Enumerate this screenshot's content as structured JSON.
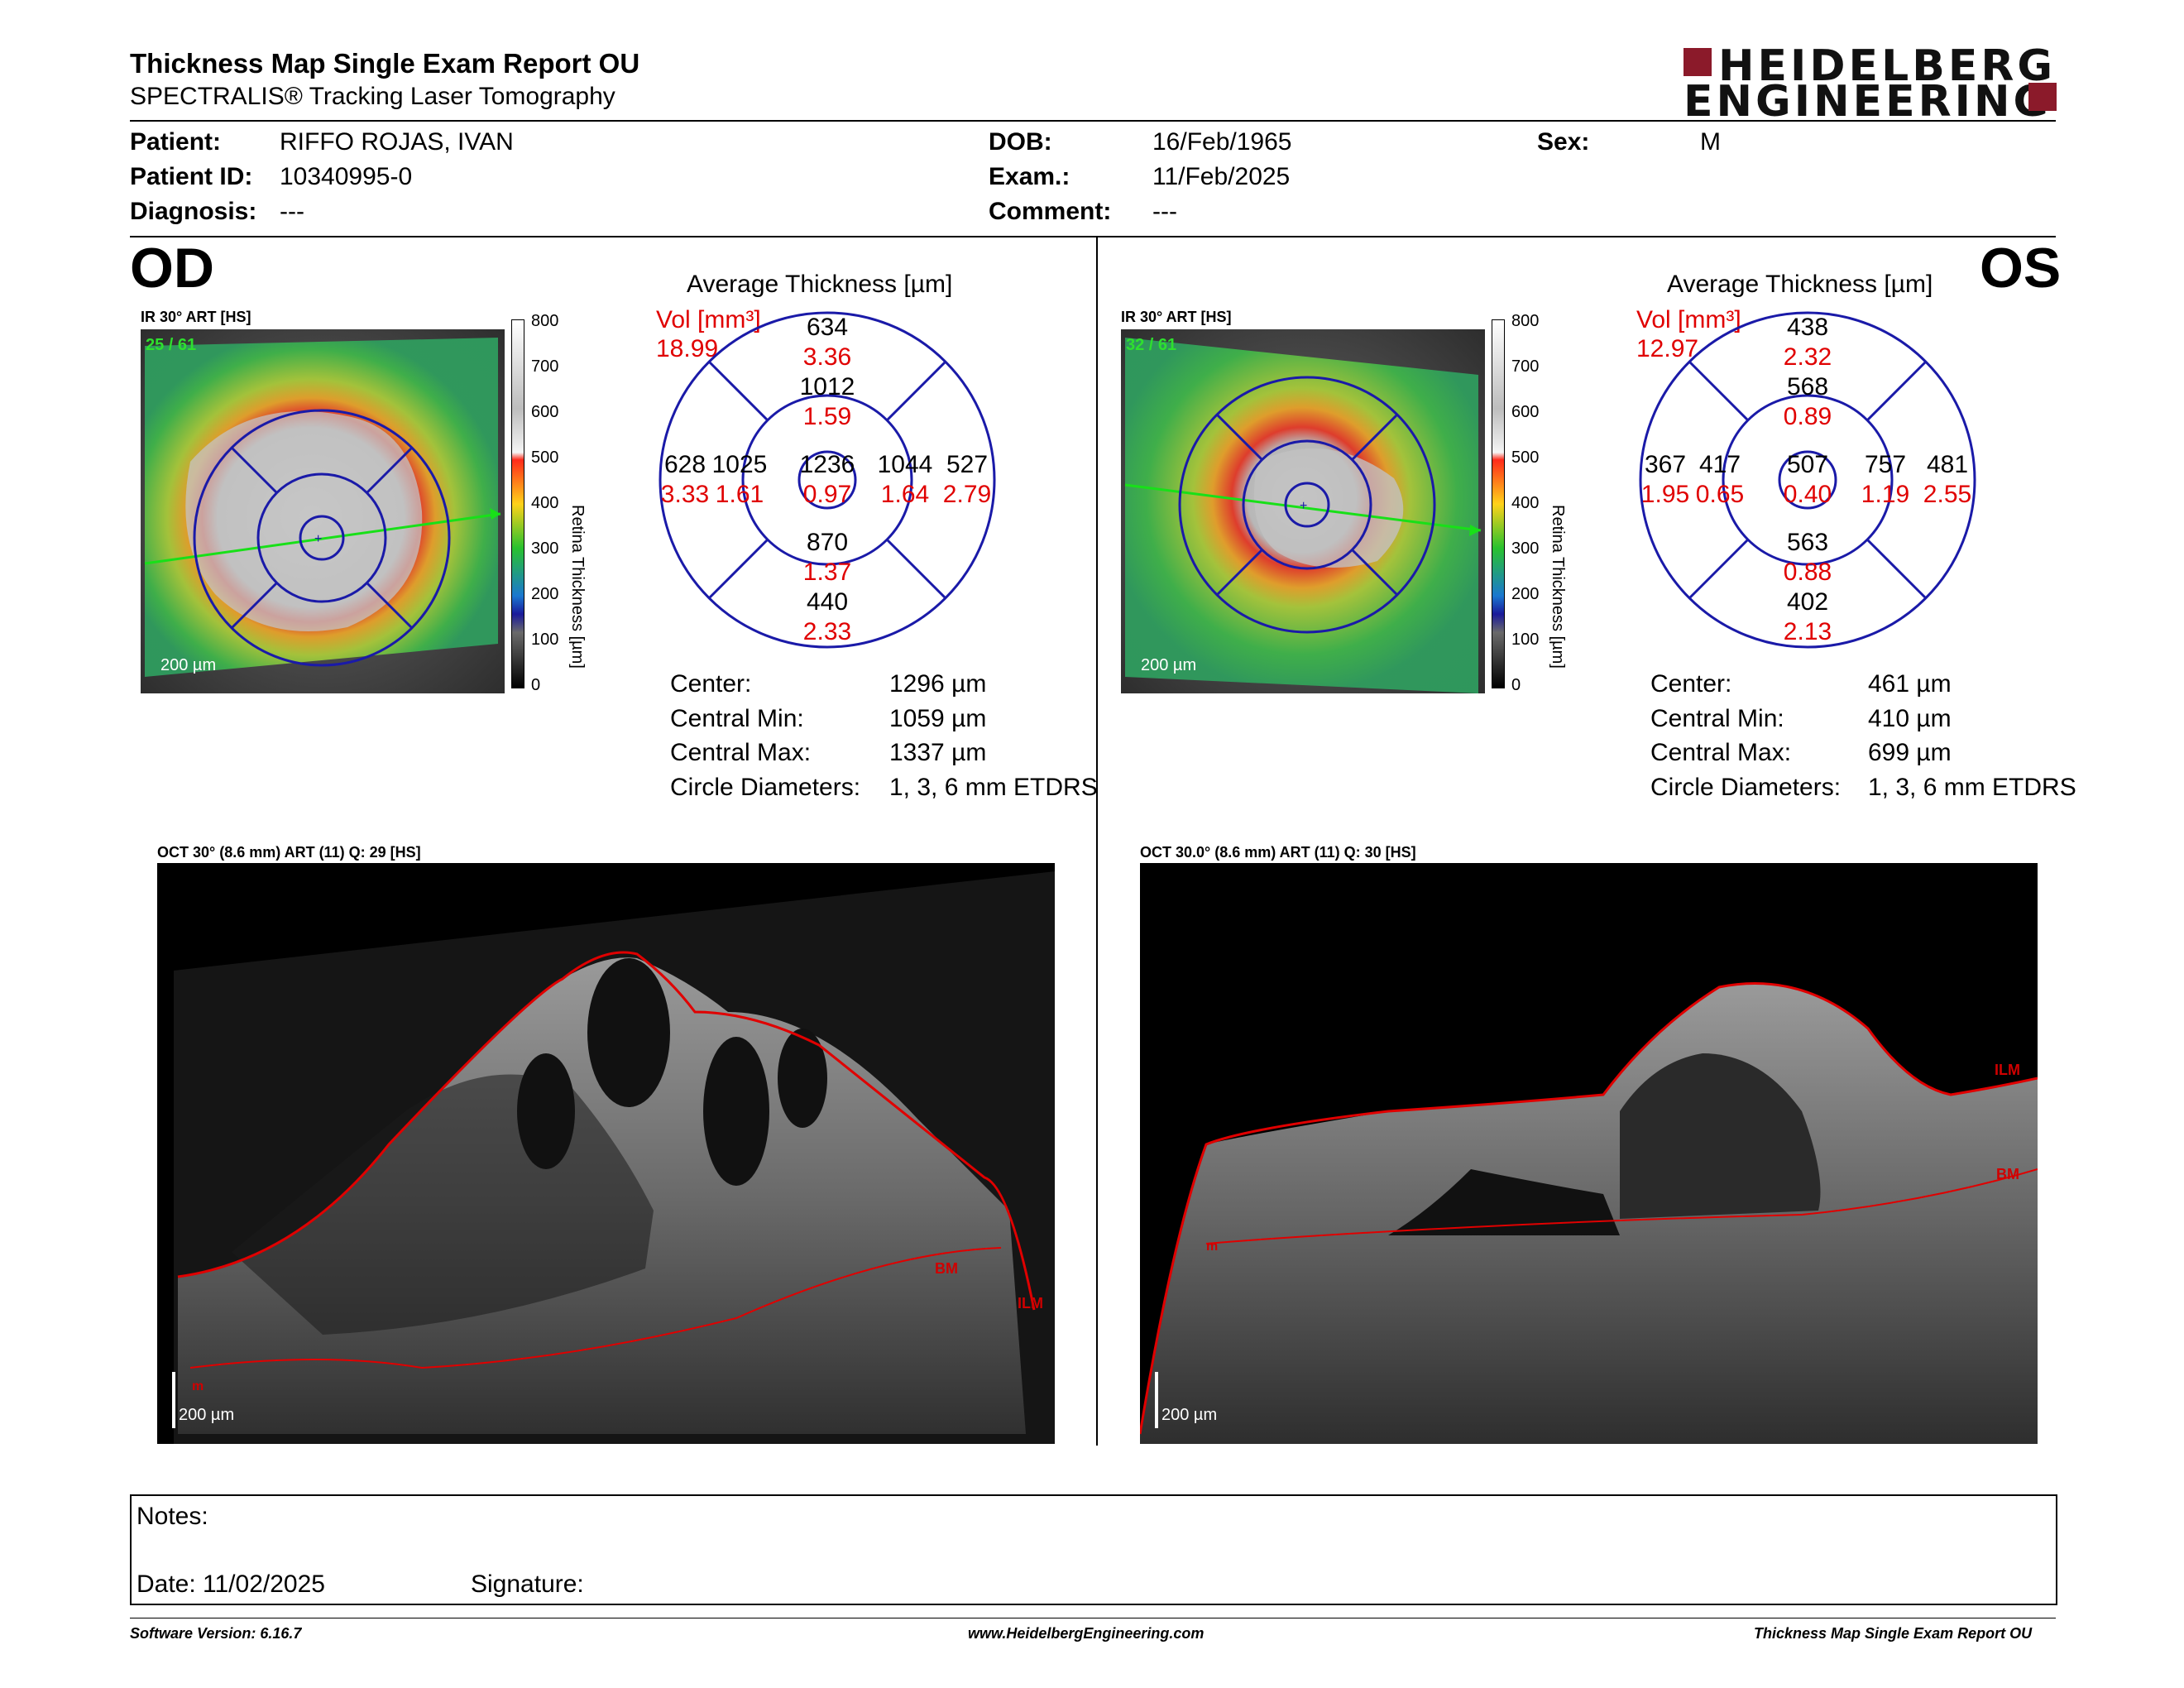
{
  "header": {
    "title": "Thickness Map Single Exam Report OU",
    "subtitle": "SPECTRALIS® Tracking Laser Tomography",
    "logo_line1": "HEIDELBERG",
    "logo_line2": "ENGINEERING"
  },
  "patient": {
    "patient_label": "Patient:",
    "patient_value": "RIFFO ROJAS, IVAN",
    "id_label": "Patient ID:",
    "id_value": "10340995-0",
    "diag_label": "Diagnosis:",
    "diag_value": "---",
    "dob_label": "DOB:",
    "dob_value": "16/Feb/1965",
    "exam_label": "Exam.:",
    "exam_value": "11/Feb/2025",
    "comment_label": "Comment:",
    "comment_value": "---",
    "sex_label": "Sex:",
    "sex_value": "M"
  },
  "od": {
    "eye_label": "OD",
    "ir_caption": "IR 30° ART [HS]",
    "frame_counter": "25 / 61",
    "scale_label": "200 µm",
    "avg_title": "Average Thickness [µm]",
    "vol_label": "Vol [mm³]",
    "vol_total": "18.99",
    "sectors": {
      "center": {
        "t": "1236",
        "v": "0.97"
      },
      "inner_sup": {
        "t": "1012",
        "v": "1.59"
      },
      "inner_inf": {
        "t": "870",
        "v": "1.37"
      },
      "inner_left": {
        "t": "1025",
        "v": "1.61"
      },
      "inner_right": {
        "t": "1044",
        "v": "1.64"
      },
      "outer_sup": {
        "t": "634",
        "v": "3.36"
      },
      "outer_inf": {
        "t": "440",
        "v": "2.33"
      },
      "outer_left": {
        "t": "628",
        "v": "3.33"
      },
      "outer_right": {
        "t": "527",
        "v": "2.79"
      }
    },
    "stats": {
      "center_label": "Center:",
      "center_value": "1296 µm",
      "min_label": "Central Min:",
      "min_value": "1059 µm",
      "max_label": "Central Max:",
      "max_value": "1337 µm",
      "diam_label": "Circle Diameters:",
      "diam_value": "1, 3, 6 mm ETDRS"
    },
    "oct_caption": "OCT 30° (8.6 mm) ART (11) Q: 29 [HS]",
    "oct_scale": "200 µm",
    "oct_labels": {
      "bm": "BM",
      "ilm": "ILM",
      "m": "m"
    }
  },
  "os": {
    "eye_label": "OS",
    "ir_caption": "IR 30° ART [HS]",
    "frame_counter": "32 / 61",
    "scale_label": "200 µm",
    "avg_title": "Average Thickness [µm]",
    "vol_label": "Vol [mm³]",
    "vol_total": "12.97",
    "sectors": {
      "center": {
        "t": "507",
        "v": "0.40"
      },
      "inner_sup": {
        "t": "568",
        "v": "0.89"
      },
      "inner_inf": {
        "t": "563",
        "v": "0.88"
      },
      "inner_left": {
        "t": "417",
        "v": "0.65"
      },
      "inner_right": {
        "t": "757",
        "v": "1.19"
      },
      "outer_sup": {
        "t": "438",
        "v": "2.32"
      },
      "outer_inf": {
        "t": "402",
        "v": "2.13"
      },
      "outer_left": {
        "t": "367",
        "v": "1.95"
      },
      "outer_right": {
        "t": "481",
        "v": "2.55"
      }
    },
    "stats": {
      "center_label": "Center:",
      "center_value": "461 µm",
      "min_label": "Central Min:",
      "min_value": "410 µm",
      "max_label": "Central Max:",
      "max_value": "699 µm",
      "diam_label": "Circle Diameters:",
      "diam_value": "1, 3, 6 mm ETDRS"
    },
    "oct_caption": "OCT 30.0° (8.6 mm) ART (11) Q: 30 [HS]",
    "oct_scale": "200 µm",
    "oct_labels": {
      "bm": "BM",
      "ilm": "ILM",
      "m": "m"
    }
  },
  "colorbar": {
    "ticks": [
      "800",
      "700",
      "600",
      "500",
      "400",
      "300",
      "200",
      "100",
      "0"
    ],
    "label": "Retina Thickness [µm]"
  },
  "notes": {
    "notes_label": "Notes:",
    "date_label": "Date: 11/02/2025",
    "signature_label": "Signature:"
  },
  "footer": {
    "software": "Software Version: 6.16.7",
    "website": "www.HeidelbergEngineering.com",
    "report": "Thickness Map Single Exam Report OU"
  },
  "colors": {
    "vol_red": "#e00000",
    "grid_blue": "#1a1aa8",
    "brand": "#8b1a2a"
  }
}
